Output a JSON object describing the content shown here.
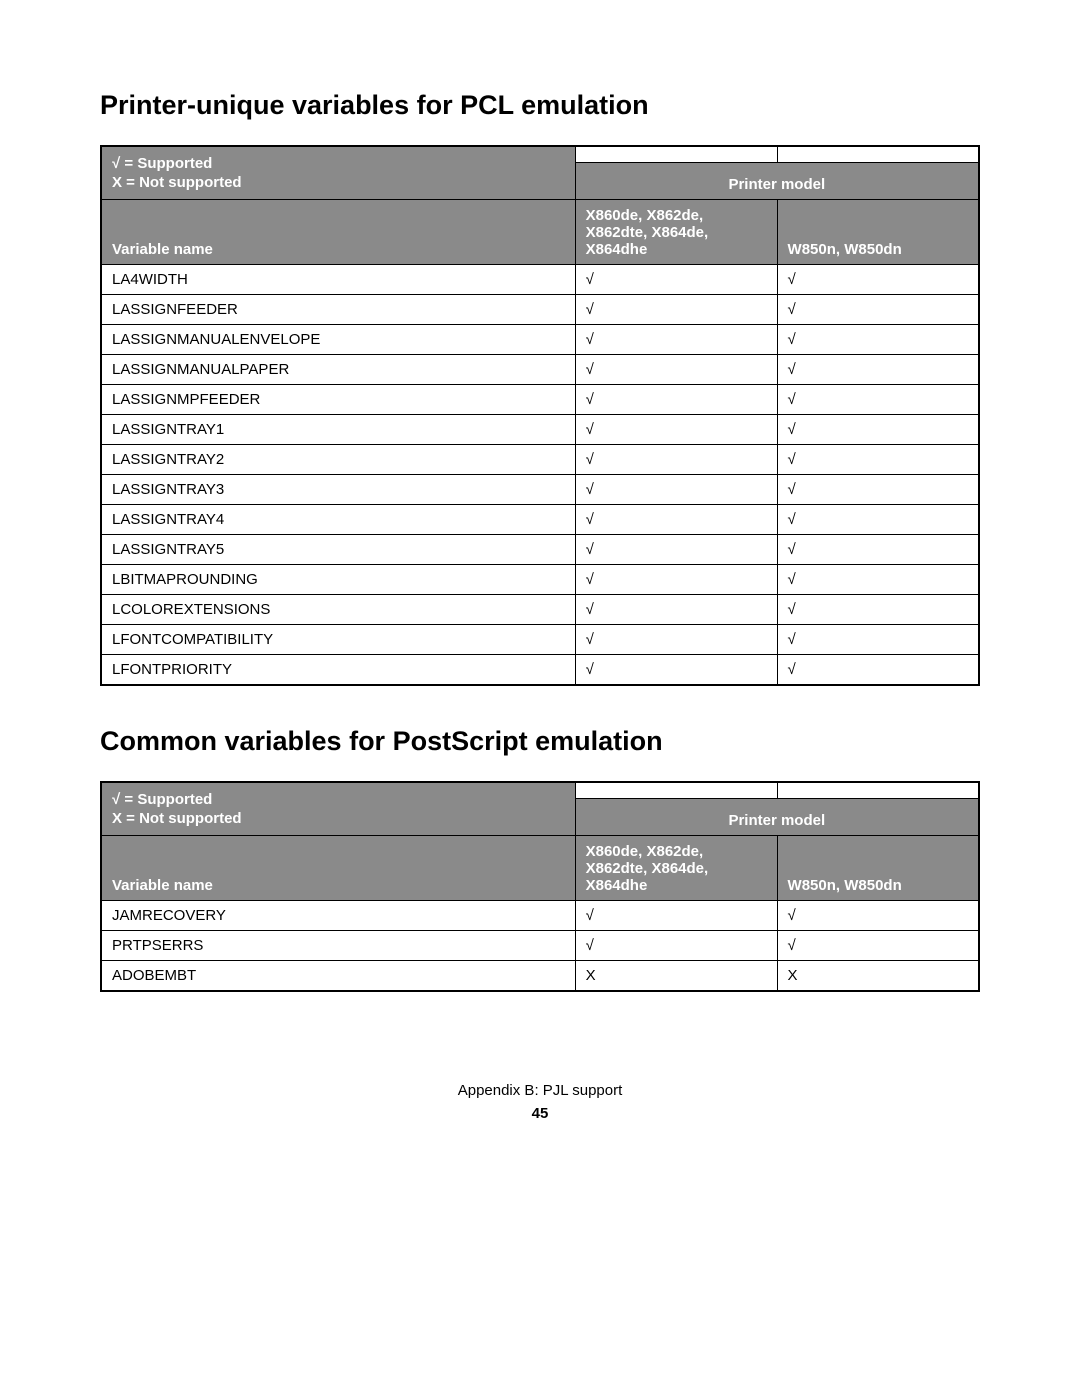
{
  "glyphs": {
    "check": "√",
    "x": "X"
  },
  "colors": {
    "header_bg": "#8a8a8a",
    "header_text": "#ffffff",
    "border": "#000000",
    "body_text": "#000000",
    "page_bg": "#ffffff"
  },
  "fonts": {
    "heading_size_pt": 20,
    "body_size_pt": 11,
    "cell_symbol_size_pt": 14,
    "family": "Arial"
  },
  "legend": {
    "supported_prefix_glyph": "√",
    "supported_text": " = Supported",
    "not_supported_text": "X = Not supported"
  },
  "column_headers": {
    "printer_model": "Printer model",
    "variable_name": "Variable name",
    "models_col1": "X860de, X862de, X862dte, X864de, X864dhe",
    "models_col2": "W850n, W850dn"
  },
  "sections": [
    {
      "heading": "Printer-unique variables for PCL emulation",
      "rows": [
        {
          "name": "LA4WIDTH",
          "c1": "√",
          "c2": "√"
        },
        {
          "name": "LASSIGNFEEDER",
          "c1": "√",
          "c2": "√"
        },
        {
          "name": "LASSIGNMANUALENVELOPE",
          "c1": "√",
          "c2": "√"
        },
        {
          "name": "LASSIGNMANUALPAPER",
          "c1": "√",
          "c2": "√"
        },
        {
          "name": "LASSIGNMPFEEDER",
          "c1": "√",
          "c2": "√"
        },
        {
          "name": "LASSIGNTRAY1",
          "c1": "√",
          "c2": "√"
        },
        {
          "name": "LASSIGNTRAY2",
          "c1": "√",
          "c2": "√"
        },
        {
          "name": "LASSIGNTRAY3",
          "c1": "√",
          "c2": "√"
        },
        {
          "name": "LASSIGNTRAY4",
          "c1": "√",
          "c2": "√"
        },
        {
          "name": "LASSIGNTRAY5",
          "c1": "√",
          "c2": "√"
        },
        {
          "name": "LBITMAPROUNDING",
          "c1": "√",
          "c2": "√"
        },
        {
          "name": "LCOLOREXTENSIONS",
          "c1": "√",
          "c2": "√"
        },
        {
          "name": "LFONTCOMPATIBILITY",
          "c1": "√",
          "c2": "√"
        },
        {
          "name": "LFONTPRIORITY",
          "c1": "√",
          "c2": "√"
        }
      ]
    },
    {
      "heading": "Common variables for PostScript emulation",
      "rows": [
        {
          "name": "JAMRECOVERY",
          "c1": "√",
          "c2": "√"
        },
        {
          "name": "PRTPSERRS",
          "c1": "√",
          "c2": "√"
        },
        {
          "name": "ADOBEMBT",
          "c1": "X",
          "c2": "X"
        }
      ]
    }
  ],
  "footer": {
    "appendix_line": "Appendix B: PJL support",
    "page_number": "45"
  }
}
